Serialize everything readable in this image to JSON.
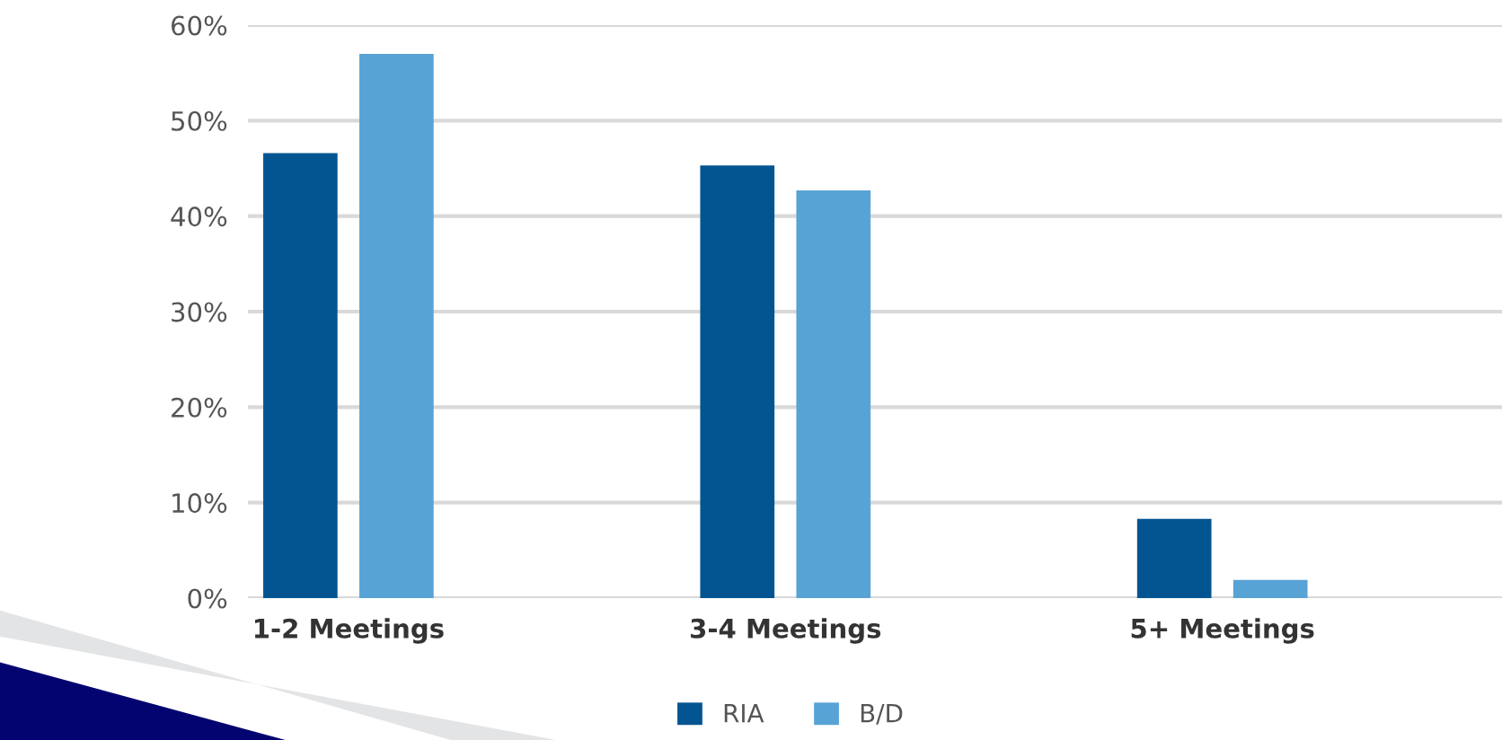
{
  "chart_data": {
    "type": "bar",
    "categories": [
      "1-2 Meetings",
      "3-4 Meetings",
      "5+ Meetings"
    ],
    "series": [
      {
        "name": "RIA",
        "color": "#035592",
        "values": [
          46.6,
          45.3,
          8.3
        ]
      },
      {
        "name": "B/D",
        "color": "#58a3d6",
        "values": [
          57.0,
          42.7,
          1.9
        ]
      }
    ],
    "ylim": [
      0,
      60
    ],
    "yticks": [
      {
        "value": 0,
        "label": "0%"
      },
      {
        "value": 10,
        "label": "10%"
      },
      {
        "value": 20,
        "label": "20%"
      },
      {
        "value": 30,
        "label": "30%"
      },
      {
        "value": 40,
        "label": "40%"
      },
      {
        "value": 50,
        "label": "50%"
      },
      {
        "value": 60,
        "label": "60%"
      }
    ],
    "grid": "y",
    "legend": "bottom"
  }
}
